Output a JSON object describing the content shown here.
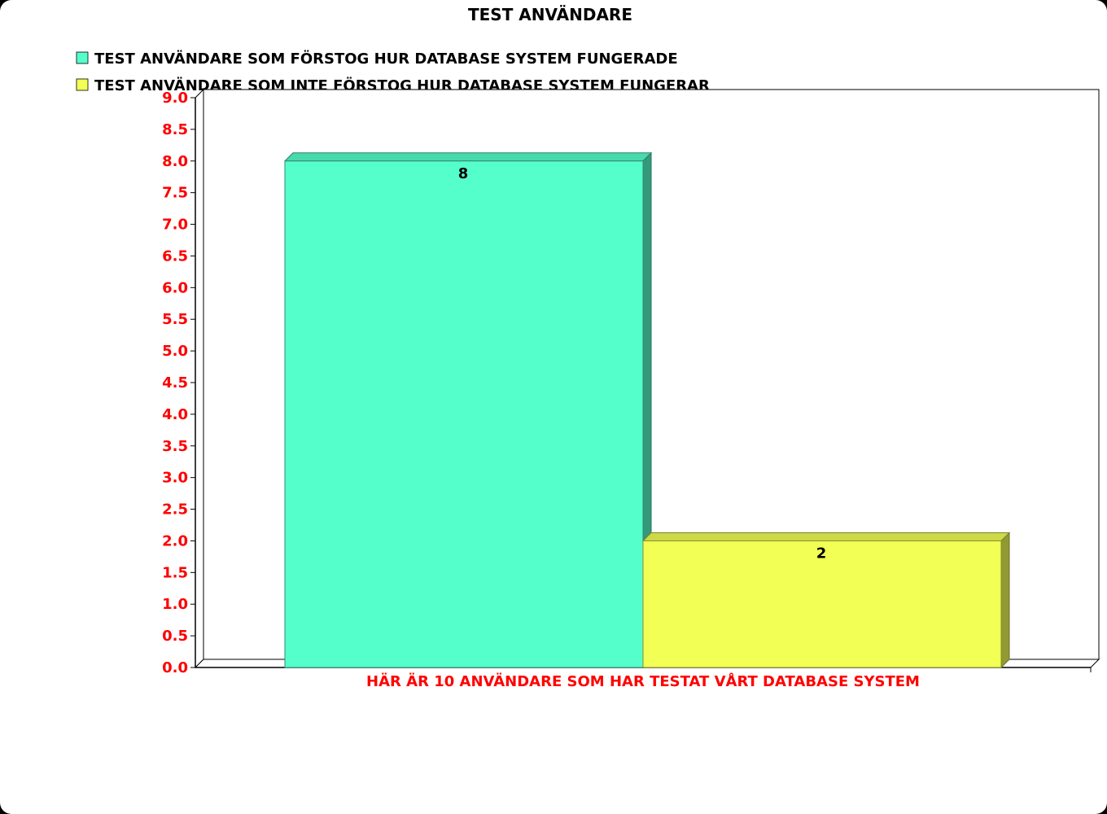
{
  "chart_data": {
    "type": "bar",
    "title": "TEST ANVÄNDARE",
    "categories": [
      "HÄR ÄR 10 ANVÄNDARE SOM HAR TESTAT VÅRT DATABASE SYSTEM"
    ],
    "series": [
      {
        "name": "TEST ANVÄNDARE SOM FÖRSTOG HUR DATABASE SYSTEM FUNGERADE",
        "values": [
          8
        ],
        "color": "#55ffcc"
      },
      {
        "name": "TEST ANVÄNDARE SOM INTE FÖRSTOG HUR DATABASE SYSTEM FUNGERAR",
        "values": [
          2
        ],
        "color": "#f2ff55"
      }
    ],
    "data_labels": [
      "8",
      "2"
    ],
    "ylim": [
      0,
      9
    ],
    "yticks": [
      "0.0",
      "0.5",
      "1.0",
      "1.5",
      "2.0",
      "2.5",
      "3.0",
      "3.5",
      "4.0",
      "4.5",
      "5.0",
      "5.5",
      "6.0",
      "6.5",
      "7.0",
      "7.5",
      "8.0",
      "8.5",
      "9.0"
    ],
    "legend_position": "top-left",
    "grid": false,
    "style": "3d"
  }
}
